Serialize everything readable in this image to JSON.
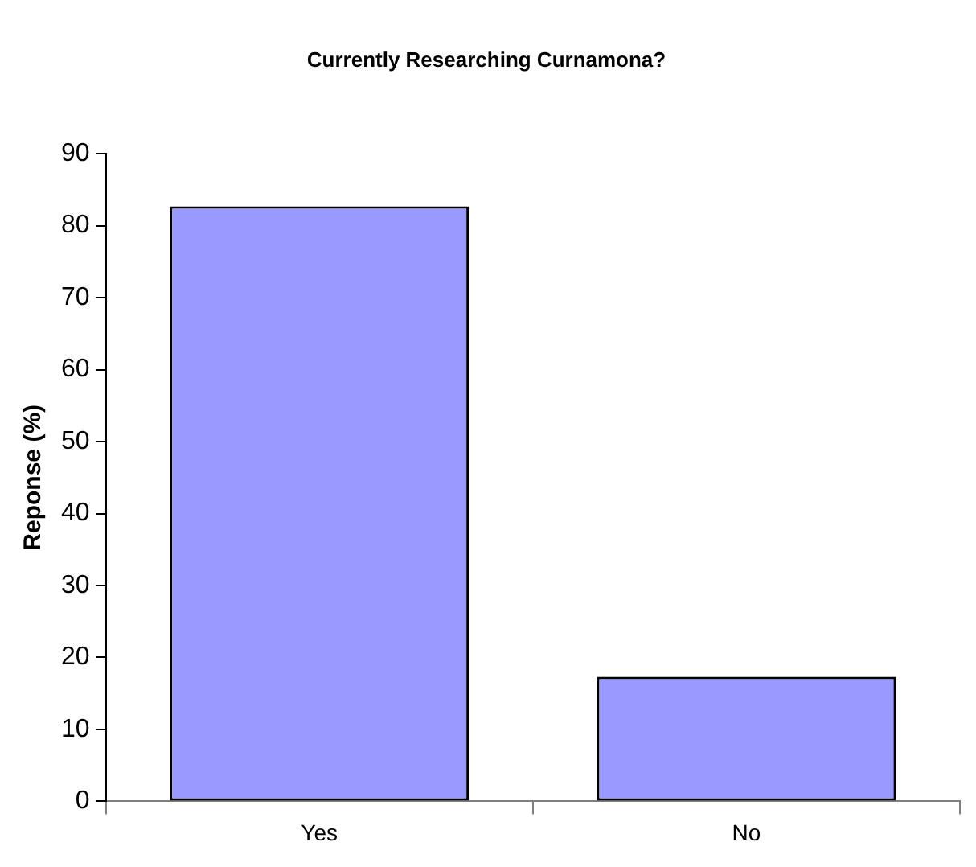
{
  "chart_data": {
    "type": "bar",
    "title": "Currently Researching Curnamona?",
    "ylabel": "Reponse (%)",
    "categories": [
      "Yes",
      "No"
    ],
    "values": [
      82.7,
      17.3
    ],
    "color": "#9999ff",
    "ylim": [
      0,
      90
    ],
    "yticks": [
      0,
      10,
      20,
      30,
      40,
      50,
      60,
      70,
      80,
      90
    ],
    "grid": false,
    "legend": false
  }
}
